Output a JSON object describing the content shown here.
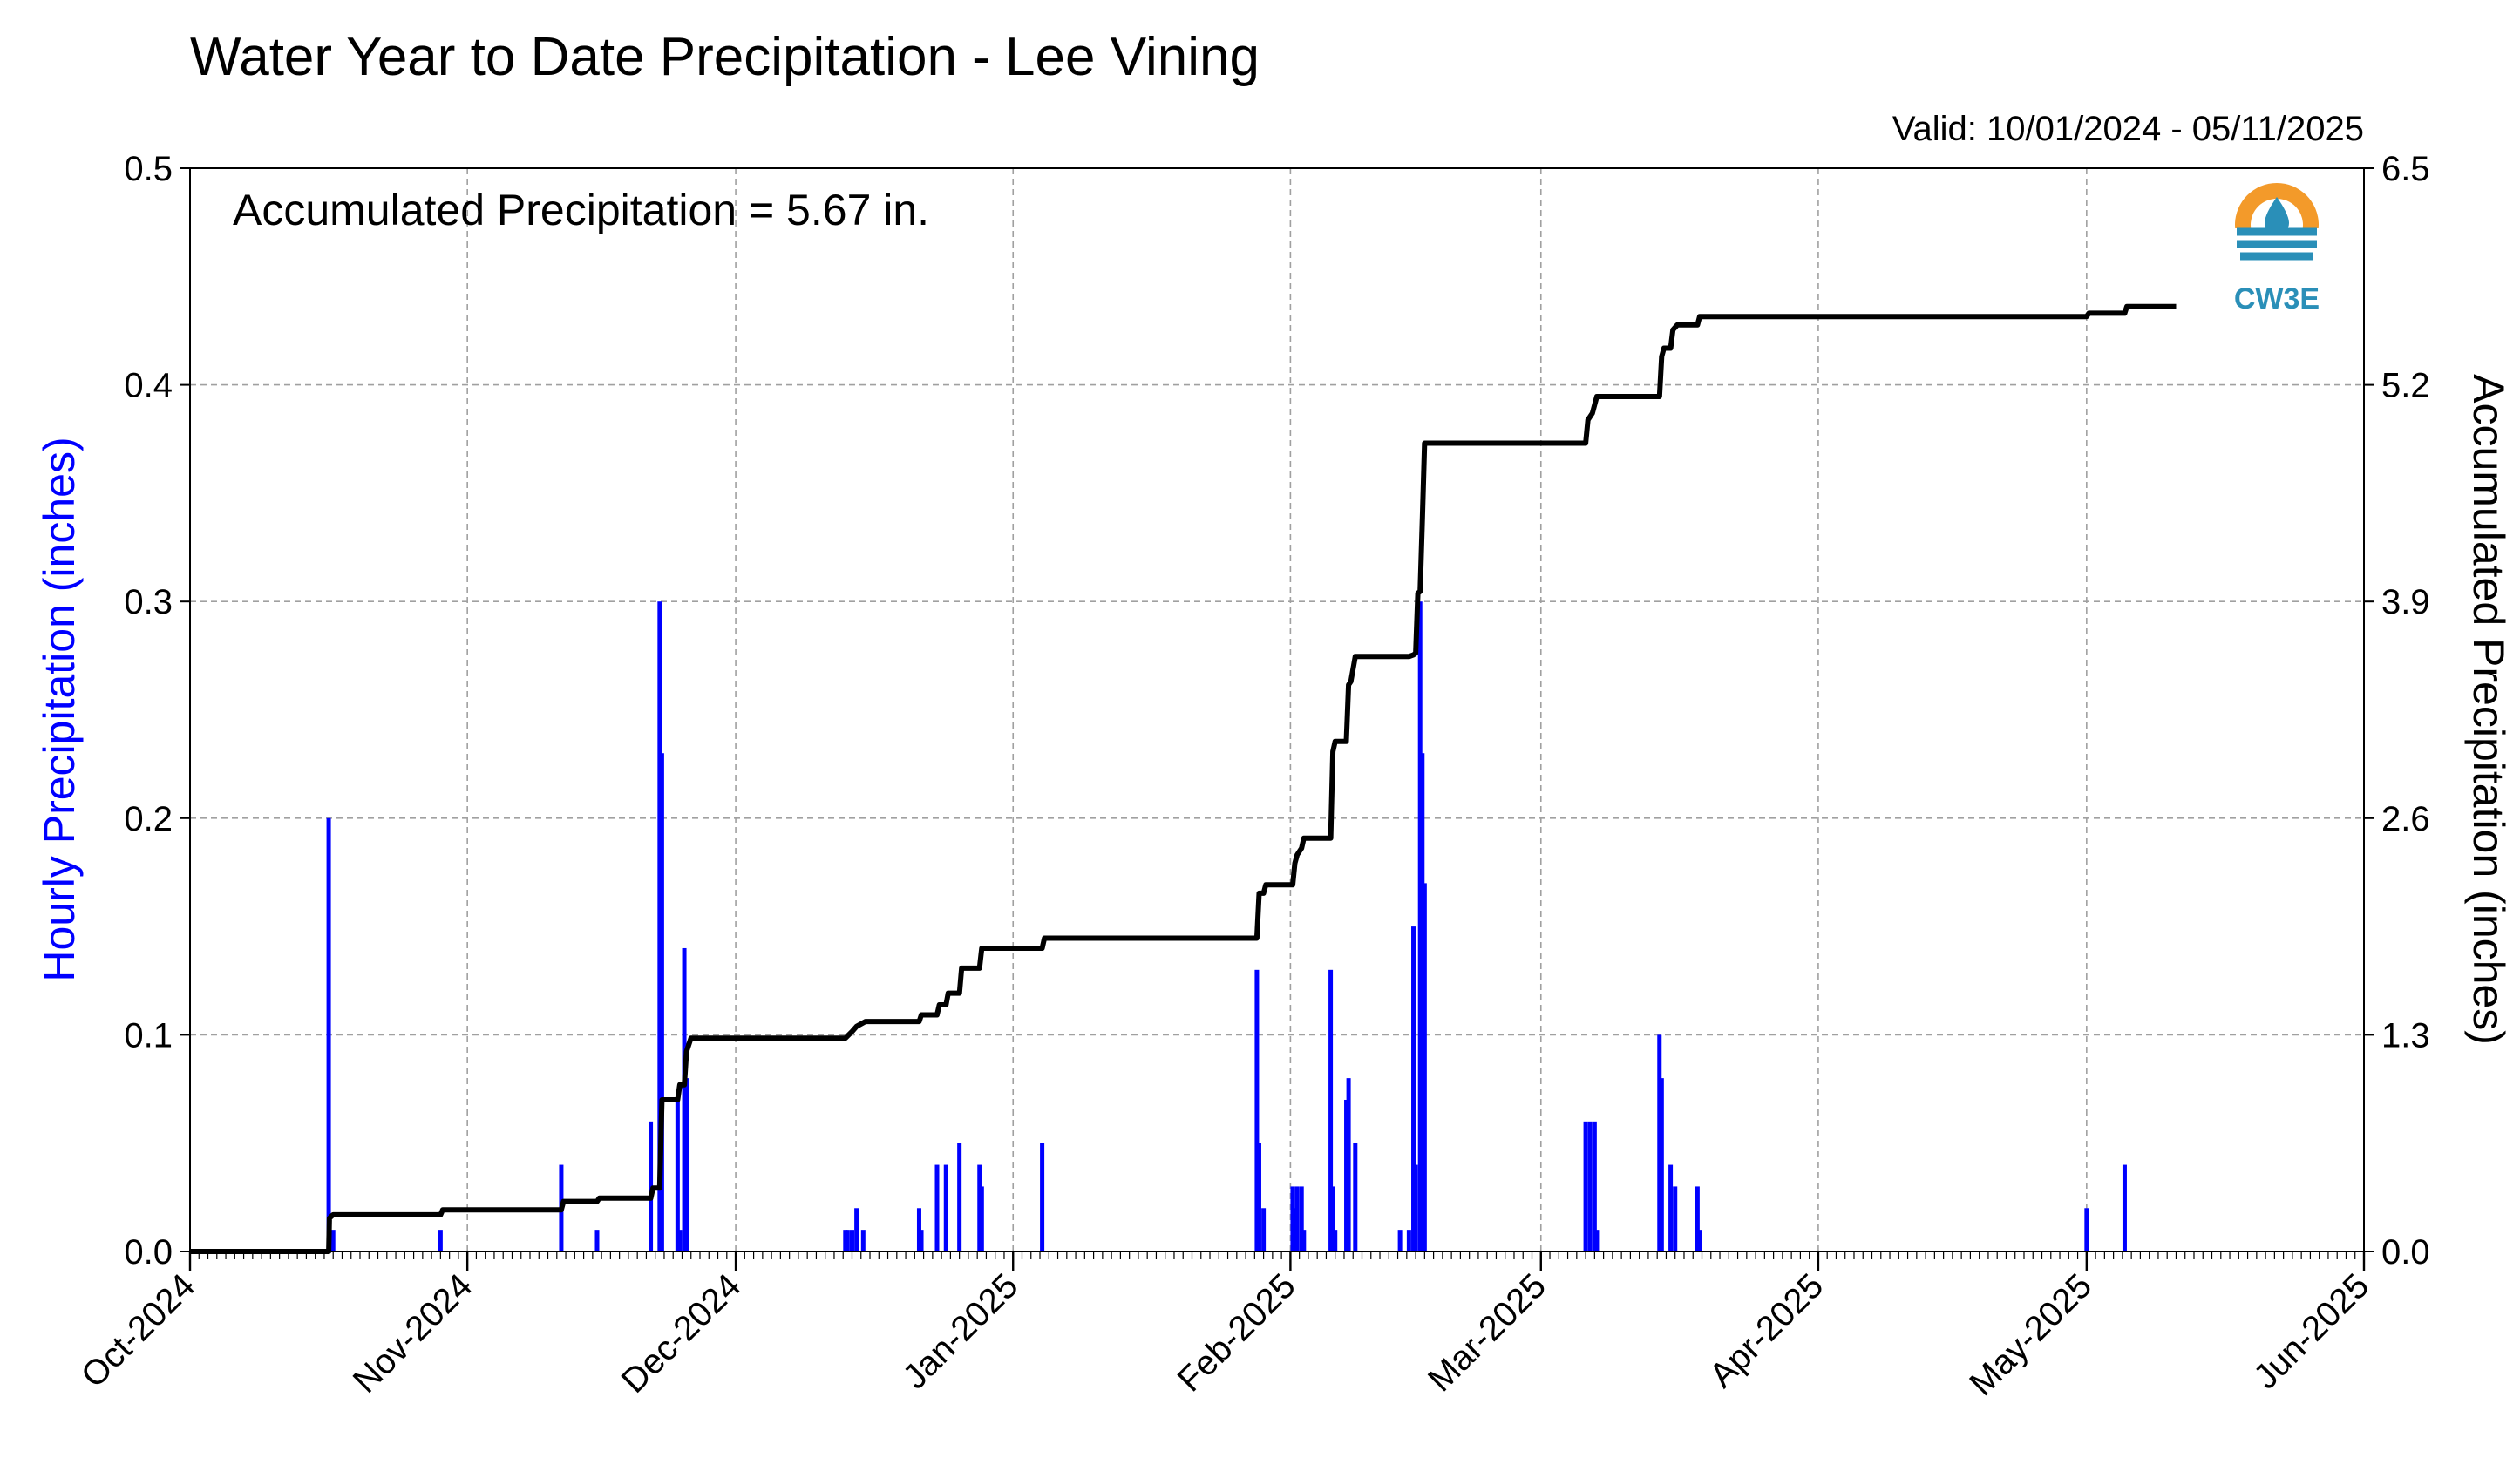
{
  "chart_data": {
    "type": "bar",
    "title": "Water Year to Date Precipitation - Lee Vining",
    "subtitle": "Valid: 10/01/2024 - 05/11/2025",
    "annotation": "Accumulated Precipitation = 5.67 in.",
    "logo_text": "CW3E",
    "grid": true,
    "x_axis": {
      "start": "2024-10-01",
      "end": "2025-06-01",
      "tick_dates": [
        "2024-10-01",
        "2024-11-01",
        "2024-12-01",
        "2025-01-01",
        "2025-02-01",
        "2025-03-01",
        "2025-04-01",
        "2025-05-01",
        "2025-06-01"
      ],
      "tick_labels": [
        "Oct-2024",
        "Nov-2024",
        "Dec-2024",
        "Jan-2025",
        "Feb-2025",
        "Mar-2025",
        "Apr-2025",
        "May-2025",
        "Jun-2025"
      ]
    },
    "y_left": {
      "label": "Hourly Precipitation (inches)",
      "range": [
        0,
        0.5
      ],
      "ticks": [
        "0.0",
        "0.1",
        "0.2",
        "0.3",
        "0.4",
        "0.5"
      ],
      "color": "#0000ff"
    },
    "y_right": {
      "label": "Accumulated Precipitation (inches)",
      "range": [
        0,
        6.5
      ],
      "ticks": [
        "0.0",
        "1.3",
        "2.6",
        "3.9",
        "5.2",
        "6.5"
      ]
    },
    "series": [
      {
        "kind": "bar",
        "axis": "left",
        "color": "#0000ff",
        "points": [
          [
            "2024-10-16T12:00",
            0.2
          ],
          [
            "2024-10-17T00:00",
            0.01
          ],
          [
            "2024-10-29T00:00",
            0.01
          ],
          [
            "2024-11-11T12:00",
            0.04
          ],
          [
            "2024-11-15T12:00",
            0.01
          ],
          [
            "2024-11-21T12:00",
            0.06
          ],
          [
            "2024-11-22T12:00",
            0.3
          ],
          [
            "2024-11-22T18:00",
            0.23
          ],
          [
            "2024-11-24T12:00",
            0.07
          ],
          [
            "2024-11-24T18:00",
            0.01
          ],
          [
            "2024-11-25T06:00",
            0.14
          ],
          [
            "2024-11-25T12:00",
            0.08
          ],
          [
            "2024-12-13T06:00",
            0.01
          ],
          [
            "2024-12-13T12:00",
            0.01
          ],
          [
            "2024-12-14T00:00",
            0.01
          ],
          [
            "2024-12-14T12:00",
            0.02
          ],
          [
            "2024-12-15T06:00",
            0.01
          ],
          [
            "2024-12-21T12:00",
            0.02
          ],
          [
            "2024-12-21T18:00",
            0.01
          ],
          [
            "2024-12-23T12:00",
            0.04
          ],
          [
            "2024-12-24T12:00",
            0.04
          ],
          [
            "2024-12-26T00:00",
            0.05
          ],
          [
            "2024-12-28T06:00",
            0.04
          ],
          [
            "2024-12-28T12:00",
            0.03
          ],
          [
            "2025-01-04T06:00",
            0.05
          ],
          [
            "2025-01-28T06:00",
            0.13
          ],
          [
            "2025-01-28T12:00",
            0.05
          ],
          [
            "2025-01-29T00:00",
            0.02
          ],
          [
            "2025-02-01T06:00",
            0.03
          ],
          [
            "2025-02-01T12:00",
            0.02
          ],
          [
            "2025-02-01T18:00",
            0.03
          ],
          [
            "2025-02-02T06:00",
            0.03
          ],
          [
            "2025-02-02T12:00",
            0.01
          ],
          [
            "2025-02-05T12:00",
            0.13
          ],
          [
            "2025-02-05T18:00",
            0.03
          ],
          [
            "2025-02-06T00:00",
            0.01
          ],
          [
            "2025-02-07T06:00",
            0.07
          ],
          [
            "2025-02-07T12:00",
            0.08
          ],
          [
            "2025-02-08T06:00",
            0.05
          ],
          [
            "2025-02-13T06:00",
            0.01
          ],
          [
            "2025-02-14T06:00",
            0.01
          ],
          [
            "2025-02-14T18:00",
            0.15
          ],
          [
            "2025-02-15T00:00",
            0.04
          ],
          [
            "2025-02-15T12:00",
            0.3
          ],
          [
            "2025-02-15T18:00",
            0.23
          ],
          [
            "2025-02-16T00:00",
            0.17
          ],
          [
            "2025-03-06T00:00",
            0.06
          ],
          [
            "2025-03-06T12:00",
            0.06
          ],
          [
            "2025-03-07T00:00",
            0.06
          ],
          [
            "2025-03-07T06:00",
            0.01
          ],
          [
            "2025-03-14T06:00",
            0.1
          ],
          [
            "2025-03-14T12:00",
            0.08
          ],
          [
            "2025-03-15T12:00",
            0.04
          ],
          [
            "2025-03-16T00:00",
            0.03
          ],
          [
            "2025-03-18T12:00",
            0.03
          ],
          [
            "2025-03-18T18:00",
            0.01
          ],
          [
            "2025-05-01T00:00",
            0.02
          ],
          [
            "2025-05-05T06:00",
            0.04
          ]
        ]
      },
      {
        "kind": "step",
        "axis": "right",
        "color": "#000000",
        "points": [
          [
            "2024-10-01T00:00",
            0.0
          ],
          [
            "2024-10-16T12:00",
            0.0
          ],
          [
            "2024-10-16T14:00",
            0.2
          ],
          [
            "2024-10-17T00:00",
            0.22
          ],
          [
            "2024-10-29T00:00",
            0.22
          ],
          [
            "2024-10-29T06:00",
            0.25
          ],
          [
            "2024-11-11T12:00",
            0.25
          ],
          [
            "2024-11-11T18:00",
            0.3
          ],
          [
            "2024-11-15T12:00",
            0.3
          ],
          [
            "2024-11-15T18:00",
            0.32
          ],
          [
            "2024-11-21T12:00",
            0.32
          ],
          [
            "2024-11-21T18:00",
            0.38
          ],
          [
            "2024-11-22T12:00",
            0.38
          ],
          [
            "2024-11-22T18:00",
            0.91
          ],
          [
            "2024-11-24T12:00",
            0.91
          ],
          [
            "2024-11-24T18:00",
            1.0
          ],
          [
            "2024-11-25T06:00",
            1.0
          ],
          [
            "2024-11-25T12:00",
            1.2
          ],
          [
            "2024-11-26T00:00",
            1.28
          ],
          [
            "2024-12-13T06:00",
            1.28
          ],
          [
            "2024-12-14T00:00",
            1.32
          ],
          [
            "2024-12-14T12:00",
            1.35
          ],
          [
            "2024-12-15T12:00",
            1.38
          ],
          [
            "2024-12-21T12:00",
            1.38
          ],
          [
            "2024-12-21T18:00",
            1.42
          ],
          [
            "2024-12-23T12:00",
            1.42
          ],
          [
            "2024-12-23T18:00",
            1.48
          ],
          [
            "2024-12-24T12:00",
            1.48
          ],
          [
            "2024-12-24T18:00",
            1.55
          ],
          [
            "2024-12-26T00:00",
            1.55
          ],
          [
            "2024-12-26T06:00",
            1.7
          ],
          [
            "2024-12-28T06:00",
            1.7
          ],
          [
            "2024-12-28T12:00",
            1.82
          ],
          [
            "2025-01-04T06:00",
            1.82
          ],
          [
            "2025-01-04T12:00",
            1.88
          ],
          [
            "2025-01-28T06:00",
            1.88
          ],
          [
            "2025-01-28T12:00",
            2.15
          ],
          [
            "2025-01-29T00:00",
            2.15
          ],
          [
            "2025-01-29T06:00",
            2.2
          ],
          [
            "2025-02-01T06:00",
            2.2
          ],
          [
            "2025-02-01T12:00",
            2.33
          ],
          [
            "2025-02-01T18:00",
            2.38
          ],
          [
            "2025-02-02T06:00",
            2.42
          ],
          [
            "2025-02-02T12:00",
            2.48
          ],
          [
            "2025-02-05T12:00",
            2.48
          ],
          [
            "2025-02-05T18:00",
            3.0
          ],
          [
            "2025-02-06T00:00",
            3.06
          ],
          [
            "2025-02-07T06:00",
            3.06
          ],
          [
            "2025-02-07T12:00",
            3.4
          ],
          [
            "2025-02-07T18:00",
            3.42
          ],
          [
            "2025-02-08T06:00",
            3.57
          ],
          [
            "2025-02-14T06:00",
            3.57
          ],
          [
            "2025-02-14T18:00",
            3.58
          ],
          [
            "2025-02-15T00:00",
            3.59
          ],
          [
            "2025-02-15T06:00",
            3.95
          ],
          [
            "2025-02-15T12:00",
            3.96
          ],
          [
            "2025-02-15T18:00",
            4.4
          ],
          [
            "2025-02-16T00:00",
            4.85
          ],
          [
            "2025-03-06T00:00",
            4.85
          ],
          [
            "2025-03-06T06:00",
            4.99
          ],
          [
            "2025-03-06T18:00",
            5.03
          ],
          [
            "2025-03-07T06:00",
            5.13
          ],
          [
            "2025-03-14T06:00",
            5.13
          ],
          [
            "2025-03-14T12:00",
            5.37
          ],
          [
            "2025-03-14T18:00",
            5.42
          ],
          [
            "2025-03-15T12:00",
            5.42
          ],
          [
            "2025-03-15T18:00",
            5.53
          ],
          [
            "2025-03-16T06:00",
            5.56
          ],
          [
            "2025-03-18T12:00",
            5.56
          ],
          [
            "2025-03-18T18:00",
            5.61
          ],
          [
            "2025-05-01T00:00",
            5.61
          ],
          [
            "2025-05-01T06:00",
            5.63
          ],
          [
            "2025-05-05T06:00",
            5.63
          ],
          [
            "2025-05-05T12:00",
            5.67
          ],
          [
            "2025-05-11T00:00",
            5.67
          ]
        ]
      }
    ]
  }
}
